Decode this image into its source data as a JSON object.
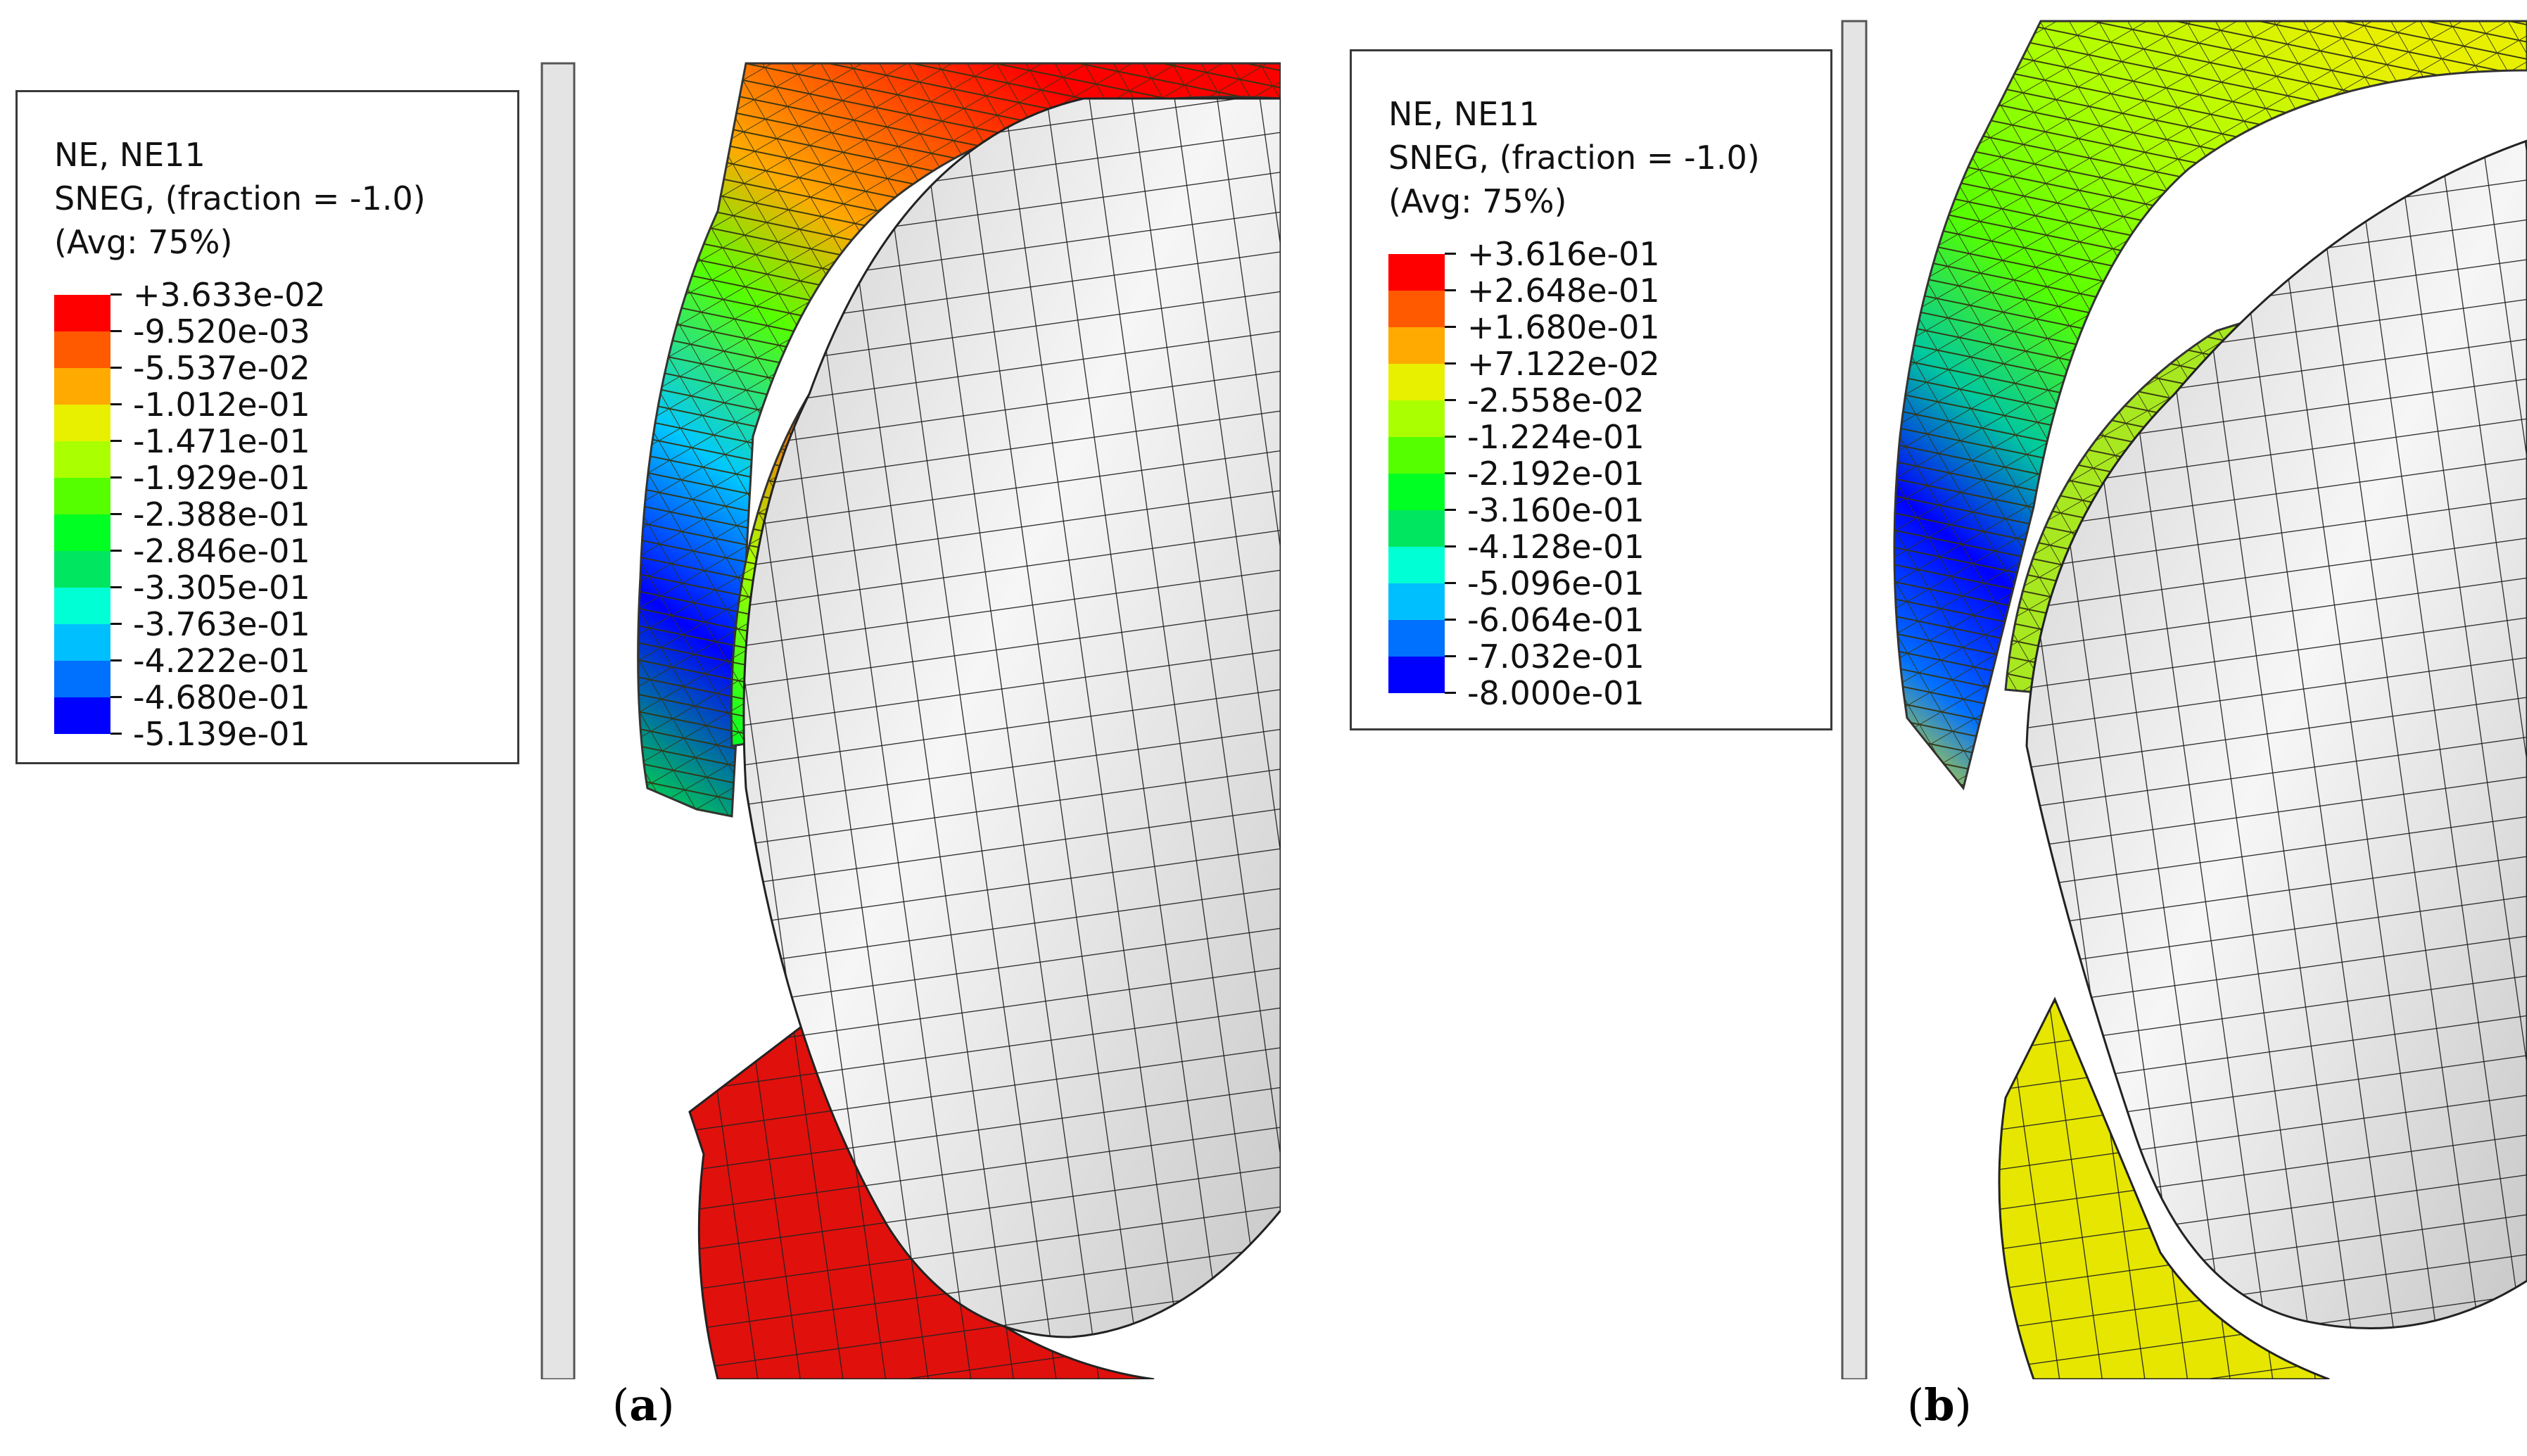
{
  "figure": {
    "panels": [
      {
        "id": "a",
        "caption": "a",
        "legend": {
          "header": [
            "NE, NE11",
            "SNEG, (fraction = -1.0)",
            "(Avg: 75%)"
          ],
          "values": [
            "+3.633e-02",
            "-9.520e-03",
            "-5.537e-02",
            "-1.012e-01",
            "-1.471e-01",
            "-1.929e-01",
            "-2.388e-01",
            "-2.846e-01",
            "-3.305e-01",
            "-3.763e-01",
            "-4.222e-01",
            "-4.680e-01",
            "-5.139e-01"
          ],
          "colors": [
            "#ff0000",
            "#ff5a00",
            "#ffaa00",
            "#e8f000",
            "#aaff00",
            "#55ff00",
            "#00ff22",
            "#00e660",
            "#00ffd5",
            "#00bfff",
            "#0070ff",
            "#0000ff"
          ]
        }
      },
      {
        "id": "b",
        "caption": "b",
        "legend": {
          "header": [
            "NE, NE11",
            "SNEG, (fraction = -1.0)",
            "(Avg: 75%)"
          ],
          "values": [
            "+3.616e-01",
            "+2.648e-01",
            "+1.680e-01",
            "+7.122e-02",
            "-2.558e-02",
            "-1.224e-01",
            "-2.192e-01",
            "-3.160e-01",
            "-4.128e-01",
            "-5.096e-01",
            "-6.064e-01",
            "-7.032e-01",
            "-8.000e-01"
          ],
          "colors": [
            "#ff0000",
            "#ff5a00",
            "#ffaa00",
            "#e8f000",
            "#aaff00",
            "#55ff00",
            "#00ff22",
            "#00e660",
            "#00ffd5",
            "#00bfff",
            "#0070ff",
            "#0000ff"
          ]
        }
      }
    ]
  }
}
